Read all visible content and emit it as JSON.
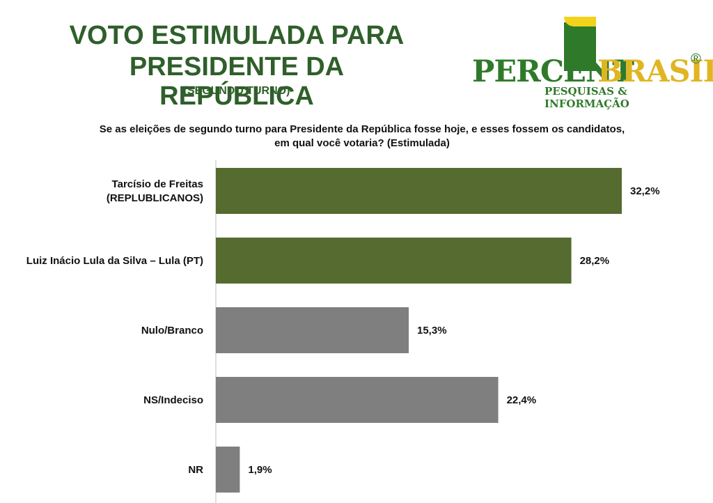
{
  "header": {
    "title_line1": "VOTO ESTIMULADA PARA",
    "title_line2": "PRESIDENTE DA REPÚBLICA",
    "subtitle": "(SEGUNDO TURNO)"
  },
  "logo": {
    "brand_part1": "PERCENT",
    "brand_part2": "BRASIL",
    "registered": "®",
    "tagline": "PESQUISAS & INFORMAÇÃO"
  },
  "question": {
    "line1": "Se as eleições de segundo turno para Presidente da República fosse hoje, e esses fossem os candidatos,",
    "line2": "em qual você votaria? (Estimulada)"
  },
  "chart_data": {
    "type": "bar",
    "orientation": "horizontal",
    "categories": [
      [
        "Tarcísio de Freitas",
        "(REPLUBLICANOS)"
      ],
      [
        "Luiz Inácio Lula da Silva – Lula (PT)"
      ],
      [
        "Nulo/Branco"
      ],
      [
        "NS/Indeciso"
      ],
      [
        "NR"
      ]
    ],
    "values": [
      32.2,
      28.2,
      15.3,
      22.4,
      1.9
    ],
    "value_labels": [
      "32,2%",
      "28,2%",
      "15,3%",
      "22,4%",
      "1,9%"
    ],
    "colors": [
      "#556b2f",
      "#556b2f",
      "#7f7f7f",
      "#7f7f7f",
      "#7f7f7f"
    ],
    "xlim": [
      0,
      32.2
    ],
    "grid": false,
    "legend": "none"
  }
}
